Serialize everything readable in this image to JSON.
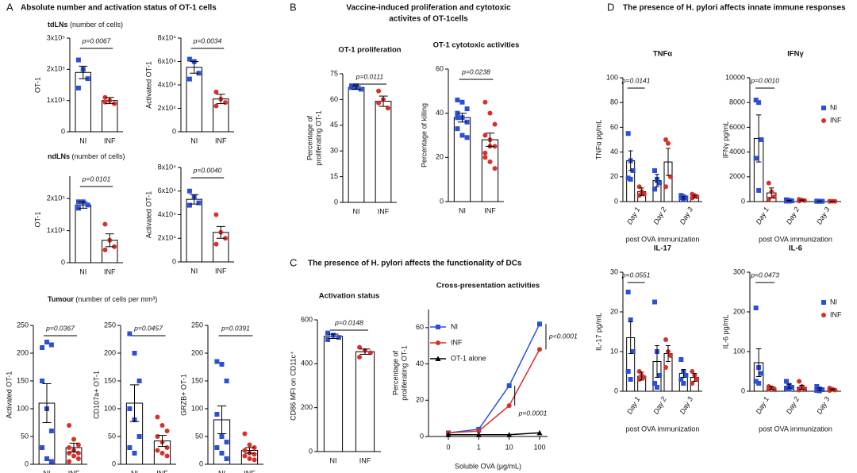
{
  "panels": [
    {
      "letter": "A",
      "title": "Absolute number and activation status of OT-1 cells"
    },
    {
      "letter": "B",
      "title": "Vaccine-induced proliferation and cytotoxic"
    },
    {
      "letter": "C",
      "title": "The presence of H. pylori affects the functionality of DCs"
    },
    {
      "letter": "D",
      "title": "The presence of H. pylori affects innate immune responses"
    }
  ],
  "panel_b_title_line2": "activites of OT-1cells",
  "headings": [
    {
      "bold": "tdLNs",
      "rest": "(number of cells)"
    },
    {
      "bold": "ndLNs",
      "rest": "(number of cells)"
    },
    {
      "bold": "Tumour",
      "rest": "(number of cells per mm³)"
    }
  ],
  "chart_data": [
    {
      "type": "bar",
      "ylabel": [
        "OT-1"
      ],
      "categories": [
        "NI",
        "INF"
      ],
      "colors": [
        "#2b50d8",
        "#d8302b"
      ],
      "values": [
        190000,
        100000
      ],
      "errors": [
        20000,
        10000
      ],
      "points": [
        [
          230000,
          200000,
          170000,
          140000
        ],
        [
          110000,
          100000,
          90000,
          95000
        ]
      ],
      "annotation": "p=0.0067",
      "ylim": [
        0,
        300000
      ],
      "yticks": [
        0,
        {
          "value": 100000,
          "label": "1x10⁵"
        },
        {
          "value": 200000,
          "label": "2x10⁵"
        },
        {
          "value": 300000,
          "label": "3x10⁵"
        }
      ]
    },
    {
      "type": "bar",
      "ylabel": [
        "Activated OT-1"
      ],
      "categories": [
        "NI",
        "INF"
      ],
      "colors": [
        "#2b50d8",
        "#d8302b"
      ],
      "values": [
        55000,
        28000
      ],
      "errors": [
        5000,
        4000
      ],
      "points": [
        [
          62000,
          60000,
          50000,
          45000
        ],
        [
          34000,
          28000,
          25000,
          22000
        ]
      ],
      "annotation": "p=0.0034",
      "ylim": [
        0,
        80000
      ],
      "yticks": [
        0,
        {
          "value": 20000,
          "label": "2x10⁴"
        },
        {
          "value": 40000,
          "label": "4x10⁴"
        },
        {
          "value": 60000,
          "label": "6x10⁴"
        },
        {
          "value": 80000,
          "label": "8x10⁴"
        }
      ]
    },
    {
      "type": "bar",
      "ylabel": [
        "OT-1"
      ],
      "categories": [
        "NI",
        "INF"
      ],
      "colors": [
        "#2b50d8",
        "#d8302b"
      ],
      "values": [
        180000,
        70000
      ],
      "errors": [
        10000,
        20000
      ],
      "points": [
        [
          190000,
          190000,
          180000,
          170000
        ],
        [
          120000,
          70000,
          50000,
          40000
        ]
      ],
      "annotation": "p=0.0101",
      "ylim": [
        0,
        270000
      ],
      "yticks": [
        0,
        {
          "value": 100000,
          "label": "1x10⁵"
        },
        {
          "value": 200000,
          "label": "2x10⁵"
        }
      ]
    },
    {
      "type": "bar",
      "ylabel": [
        "Activated OT-1"
      ],
      "categories": [
        "NI",
        "INF"
      ],
      "colors": [
        "#2b50d8",
        "#d8302b"
      ],
      "values": [
        53000,
        25000
      ],
      "errors": [
        4000,
        5000
      ],
      "points": [
        [
          60000,
          55000,
          50000,
          48000
        ],
        [
          40000,
          25000,
          20000,
          15000
        ]
      ],
      "annotation": "p=0.0040",
      "ylim": [
        0,
        80000
      ],
      "yticks": [
        0,
        {
          "value": 20000,
          "label": "2x10⁴"
        },
        {
          "value": 40000,
          "label": "4x10⁴"
        },
        {
          "value": 60000,
          "label": "6x10⁴"
        },
        {
          "value": 80000,
          "label": "8x10⁴"
        }
      ]
    },
    {
      "type": "bar",
      "ylabel": [
        "Activated OT-1"
      ],
      "categories": [
        "NI",
        "INF"
      ],
      "colors": [
        "#2b50d8",
        "#d8302b"
      ],
      "values": [
        110,
        30
      ],
      "errors": [
        35,
        8
      ],
      "points": [
        [
          210,
          220,
          215,
          150,
          100,
          60,
          30,
          10,
          5
        ],
        [
          70,
          45,
          35,
          30,
          25,
          20,
          20,
          15,
          10,
          5
        ]
      ],
      "annotation": "p=0.0367",
      "ylim": [
        0,
        250
      ],
      "yticks": [
        0,
        50,
        100,
        150,
        200,
        250
      ]
    },
    {
      "type": "bar",
      "ylabel": [
        "CD107a+ OT-1"
      ],
      "categories": [
        "NI",
        "INF"
      ],
      "colors": [
        "#2b50d8",
        "#d8302b"
      ],
      "values": [
        110,
        42
      ],
      "errors": [
        33,
        10
      ],
      "points": [
        [
          235,
          200,
          150,
          100,
          80,
          50,
          30,
          20
        ],
        [
          85,
          70,
          60,
          50,
          40,
          30,
          25,
          20,
          15
        ]
      ],
      "annotation": "p=0.0457",
      "ylim": [
        0,
        250
      ],
      "yticks": [
        0,
        50,
        100,
        150,
        200,
        250
      ]
    },
    {
      "type": "bar",
      "ylabel": [
        "GRZB+ OT-1"
      ],
      "categories": [
        "NI",
        "INF"
      ],
      "colors": [
        "#2b50d8",
        "#d8302b"
      ],
      "values": [
        80,
        25
      ],
      "errors": [
        25,
        5
      ],
      "points": [
        [
          185,
          180,
          150,
          90,
          50,
          40,
          30,
          20,
          10
        ],
        [
          55,
          35,
          30,
          25,
          20,
          18,
          15,
          10,
          8
        ]
      ],
      "annotation": "p=0.0391",
      "ylim": [
        0,
        250
      ],
      "yticks": [
        0,
        50,
        100,
        150,
        200,
        250
      ]
    },
    {
      "type": "bar",
      "title": "OT-1 proliferation",
      "ylabel": [
        "Percentage of",
        "proliferating OT-1"
      ],
      "categories": [
        "NI",
        "INF"
      ],
      "colors": [
        "#2b50d8",
        "#d8302b"
      ],
      "values": [
        67,
        59
      ],
      "errors": [
        1,
        3
      ],
      "points": [
        [
          68,
          67,
          66,
          67,
          68
        ],
        [
          65,
          60,
          55,
          58
        ]
      ],
      "annotation": "p=0.0111",
      "ylim": [
        0,
        75
      ],
      "yticks": [
        0,
        15,
        30,
        45,
        60,
        75
      ]
    },
    {
      "type": "bar",
      "title": "OT-1 cytotoxic activities",
      "ylabel": [
        "Percentage of killing"
      ],
      "categories": [
        "NI",
        "INF"
      ],
      "colors": [
        "#2b50d8",
        "#d8302b"
      ],
      "values": [
        38,
        28
      ],
      "errors": [
        2,
        3
      ],
      "points": [
        [
          46,
          45,
          42,
          40,
          38,
          36,
          33,
          30,
          29,
          38
        ],
        [
          45,
          40,
          35,
          30,
          28,
          25,
          22,
          18,
          15,
          20,
          25
        ]
      ],
      "annotation": "p=0.0238",
      "ylim": [
        0,
        60
      ],
      "yticks": [
        0,
        20,
        40,
        60
      ]
    },
    {
      "type": "bar",
      "title": "Activation status",
      "ylabel": [
        "CD86 MFI on CD11c⁺"
      ],
      "categories": [
        "NI",
        "INF"
      ],
      "colors": [
        "#2b50d8",
        "#d8302b"
      ],
      "values": [
        525,
        455
      ],
      "errors": [
        10,
        12
      ],
      "points": [
        [
          540,
          530,
          520,
          510
        ],
        [
          475,
          460,
          450,
          430
        ]
      ],
      "annotation": "p=0.0148",
      "ylim": [
        0,
        600
      ],
      "yticks": [
        0,
        200,
        400,
        600
      ]
    },
    {
      "type": "line",
      "title": "Cross-presentation activities",
      "ylabel": [
        "Percentage of",
        "proliferating OT-1"
      ],
      "xlabel": "Soluble OVA (µg/mL)",
      "categories": [
        "0",
        "1",
        "10",
        "100"
      ],
      "series": [
        {
          "name": "NI",
          "color": "#2b50d8",
          "values": [
            2,
            4,
            28,
            62
          ]
        },
        {
          "name": "INF",
          "color": "#d8302b",
          "values": [
            2,
            3,
            17,
            48
          ]
        },
        {
          "name": "OT-1 alone",
          "color": "#000000",
          "values": [
            1,
            1,
            1,
            2
          ]
        }
      ],
      "annotations": [
        "p<0.0001",
        "p=0.0001"
      ],
      "legend": "upper left",
      "ylim": [
        0,
        70
      ],
      "yticks": [
        0,
        20,
        40,
        60
      ]
    },
    {
      "type": "bar",
      "title": "TNFα",
      "ylabel": [
        "TNFα  pg/mL"
      ],
      "xlabel": "post OVA immunization",
      "categories": [
        "Day 1",
        "Day 2",
        "Day 3"
      ],
      "series": [
        {
          "name": "NI",
          "color": "#2b50d8",
          "values": [
            33,
            17,
            3
          ],
          "errors": [
            8,
            5,
            1
          ],
          "points": [
            [
              55,
              33,
              25,
              19,
              18
            ],
            [
              25,
              18,
              15,
              10,
              17
            ],
            [
              5,
              4,
              3,
              3,
              2
            ]
          ]
        },
        {
          "name": "INF",
          "color": "#d8302b",
          "values": [
            8,
            32,
            4
          ],
          "errors": [
            3,
            11,
            1
          ],
          "points": [
            [
              12,
              8,
              6,
              5
            ],
            [
              50,
              47,
              20,
              12
            ],
            [
              6,
              5,
              4,
              3
            ]
          ]
        }
      ],
      "annotation": "p=0.0141",
      "ylim": [
        0,
        100
      ],
      "yticks": [
        0,
        20,
        40,
        60,
        80,
        100
      ]
    },
    {
      "type": "bar",
      "title": "IFNγ",
      "ylabel": [
        "IFNγ pg/mL"
      ],
      "xlabel": "post OVA immunization",
      "categories": [
        "Day 1",
        "Day 2",
        "Day 3"
      ],
      "series": [
        {
          "name": "NI",
          "color": "#2b50d8",
          "values": [
            5100,
            80,
            30
          ],
          "errors": [
            1900,
            30,
            10
          ],
          "points": [
            [
              8200,
              8000,
              5000,
              3500,
              900
            ],
            [
              150,
              100,
              60,
              40,
              30
            ],
            [
              40,
              30,
              25,
              20,
              20
            ]
          ]
        },
        {
          "name": "INF",
          "color": "#d8302b",
          "values": [
            700,
            100,
            20
          ],
          "errors": [
            400,
            30,
            10
          ],
          "points": [
            [
              1500,
              800,
              400,
              200
            ],
            [
              180,
              120,
              80,
              50
            ],
            [
              30,
              25,
              20,
              15
            ]
          ]
        }
      ],
      "annotation": "p=0.0010",
      "legend": "upper right",
      "ylim": [
        0,
        10000
      ],
      "yticks": [
        0,
        2000,
        4000,
        6000,
        8000,
        10000
      ]
    },
    {
      "type": "bar",
      "title": "IL-17",
      "ylabel": [
        "IL-17 pg/mL"
      ],
      "xlabel": "post OVA immunization",
      "categories": [
        "Day 1",
        "Day 2",
        "Day 3"
      ],
      "series": [
        {
          "name": "NI",
          "color": "#2b50d8",
          "values": [
            13.5,
            7.5,
            4.5
          ],
          "errors": [
            4,
            4,
            1
          ],
          "points": [
            [
              25,
              18,
              10,
              5,
              3
            ],
            [
              22.5,
              10,
              4,
              2,
              1
            ],
            [
              8,
              5,
              4,
              3,
              2
            ]
          ]
        },
        {
          "name": "INF",
          "color": "#d8302b",
          "values": [
            3.8,
            9.5,
            3.5
          ],
          "errors": [
            1,
            2,
            1
          ],
          "points": [
            [
              5,
              4,
              3.5,
              3
            ],
            [
              13,
              10,
              9,
              6
            ],
            [
              5,
              4,
              3,
              2
            ]
          ]
        }
      ],
      "annotation": "p=0.0551",
      "ylim": [
        0,
        30
      ],
      "yticks": [
        0,
        10,
        20,
        30
      ]
    },
    {
      "type": "bar",
      "title": "IL-6",
      "ylabel": [
        "IL-6 pg/mL"
      ],
      "xlabel": "post OVA immunization",
      "categories": [
        "Day 1",
        "Day 2",
        "Day 3"
      ],
      "series": [
        {
          "name": "NI",
          "color": "#2b50d8",
          "values": [
            72,
            13,
            5
          ],
          "errors": [
            35,
            5,
            3
          ],
          "points": [
            [
              210,
              60,
              45,
              25,
              20
            ],
            [
              25,
              15,
              10,
              8,
              5
            ],
            [
              12,
              6,
              4,
              2,
              1
            ]
          ]
        },
        {
          "name": "INF",
          "color": "#d8302b",
          "values": [
            8,
            10,
            4
          ],
          "errors": [
            3,
            5,
            2
          ],
          "points": [
            [
              12,
              9,
              6,
              5
            ],
            [
              25,
              12,
              6,
              3
            ],
            [
              8,
              5,
              3,
              2
            ]
          ]
        }
      ],
      "annotation": "p=0.0473",
      "legend": "upper right",
      "ylim": [
        0,
        300
      ],
      "yticks": [
        0,
        100,
        200,
        300
      ]
    }
  ]
}
